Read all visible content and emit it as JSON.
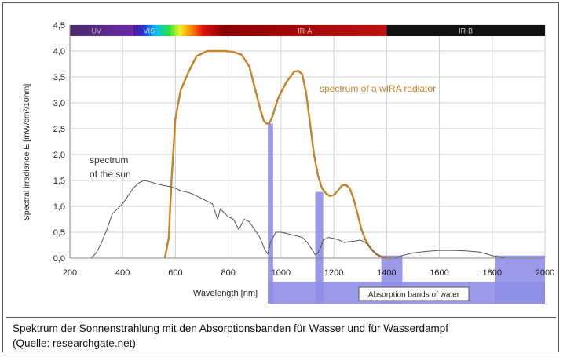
{
  "chart_data": {
    "type": "line",
    "xlabel": "Wavelength [nm]",
    "ylabel": "Spectral irradiance E [mW/cm²/10nm]",
    "xlim": [
      200,
      2000
    ],
    "ylim": [
      0,
      4.5
    ],
    "xticks": [
      "200",
      "400",
      "600",
      "800",
      "1000",
      "1200",
      "1400",
      "1600",
      "1800",
      "2000"
    ],
    "yticks": [
      "0,0",
      "0,5",
      "1,0",
      "1,5",
      "2,0",
      "2,5",
      "3,0",
      "3,5",
      "4,0",
      "4,5"
    ],
    "grid": true,
    "bands": [
      {
        "label": "UV",
        "range": [
          200,
          440
        ]
      },
      {
        "label": "VIS",
        "range": [
          440,
          780
        ]
      },
      {
        "label": "IR-A",
        "range": [
          780,
          1400
        ]
      },
      {
        "label": "IR-B",
        "range": [
          1400,
          2000
        ]
      }
    ],
    "series": [
      {
        "name": "spectrum of a wIRA radiator",
        "color": "#c8822a",
        "x": [
          560,
          575,
          585,
          600,
          620,
          650,
          680,
          720,
          760,
          790,
          820,
          850,
          880,
          900,
          920,
          935,
          945,
          955,
          965,
          990,
          1020,
          1050,
          1065,
          1080,
          1095,
          1110,
          1125,
          1140,
          1155,
          1170,
          1185,
          1200,
          1215,
          1230,
          1245,
          1260,
          1275,
          1290,
          1305,
          1320,
          1340,
          1360,
          1380,
          1400,
          1420
        ],
        "values": [
          0.0,
          0.4,
          1.5,
          2.7,
          3.25,
          3.6,
          3.9,
          4.0,
          4.0,
          4.0,
          3.98,
          3.93,
          3.7,
          3.3,
          2.9,
          2.65,
          2.6,
          2.6,
          2.7,
          3.1,
          3.4,
          3.6,
          3.62,
          3.55,
          3.2,
          2.6,
          2.0,
          1.6,
          1.35,
          1.25,
          1.2,
          1.22,
          1.3,
          1.4,
          1.42,
          1.35,
          1.15,
          0.85,
          0.55,
          0.35,
          0.18,
          0.08,
          0.03,
          0.0,
          0.0
        ]
      },
      {
        "name": "spectrum of the sun",
        "color": "#555555",
        "x": [
          280,
          300,
          320,
          340,
          360,
          380,
          400,
          420,
          440,
          460,
          480,
          500,
          520,
          540,
          560,
          580,
          600,
          620,
          640,
          660,
          680,
          700,
          720,
          740,
          760,
          770,
          780,
          800,
          820,
          840,
          860,
          880,
          900,
          920,
          940,
          950,
          960,
          980,
          1000,
          1020,
          1040,
          1060,
          1080,
          1100,
          1120,
          1130,
          1140,
          1150,
          1160,
          1180,
          1200,
          1220,
          1240,
          1260,
          1280,
          1300,
          1320,
          1340,
          1360,
          1380,
          1400,
          1430,
          1460,
          1500,
          1550,
          1600,
          1650,
          1700,
          1750,
          1800,
          1850,
          1900,
          1950,
          2000
        ],
        "values": [
          0.0,
          0.1,
          0.3,
          0.55,
          0.85,
          0.95,
          1.05,
          1.2,
          1.35,
          1.45,
          1.5,
          1.48,
          1.45,
          1.42,
          1.4,
          1.38,
          1.35,
          1.3,
          1.28,
          1.25,
          1.2,
          1.15,
          1.1,
          1.05,
          0.75,
          0.95,
          0.9,
          0.8,
          0.75,
          0.55,
          0.75,
          0.7,
          0.55,
          0.4,
          0.15,
          0.08,
          0.3,
          0.5,
          0.5,
          0.48,
          0.45,
          0.43,
          0.4,
          0.3,
          0.15,
          0.06,
          0.1,
          0.2,
          0.35,
          0.4,
          0.38,
          0.35,
          0.3,
          0.32,
          0.33,
          0.35,
          0.3,
          0.2,
          0.08,
          0.02,
          0.0,
          0.0,
          0.05,
          0.1,
          0.13,
          0.15,
          0.15,
          0.14,
          0.12,
          0.05,
          0.0,
          0.0,
          0.0,
          0.0
        ]
      }
    ],
    "absorption_band_label": "Absorption bands of water",
    "absorption_bands": [
      {
        "range": [
          950,
          970
        ],
        "top": 2.6
      },
      {
        "range": [
          1130,
          1160
        ],
        "top": 1.28
      },
      {
        "range": [
          1380,
          1460
        ],
        "top": 0.05
      },
      {
        "range": [
          1810,
          2000
        ],
        "top": 0.05
      }
    ],
    "annotations": {
      "wira": "spectrum of a wIRA radiator",
      "sun_line1": "spectrum",
      "sun_line2": "of the sun"
    }
  },
  "caption": {
    "line1": "Spektrum der Sonnenstrahlung mit den Absorptionsbanden für Wasser und für Wasserdampf",
    "line2": "(Quelle: researchgate.net)"
  },
  "colors": {
    "band_fill": "#8f8fe6",
    "wira": "#c8822a",
    "sun": "#555555",
    "grid": "#d0d0d0"
  }
}
